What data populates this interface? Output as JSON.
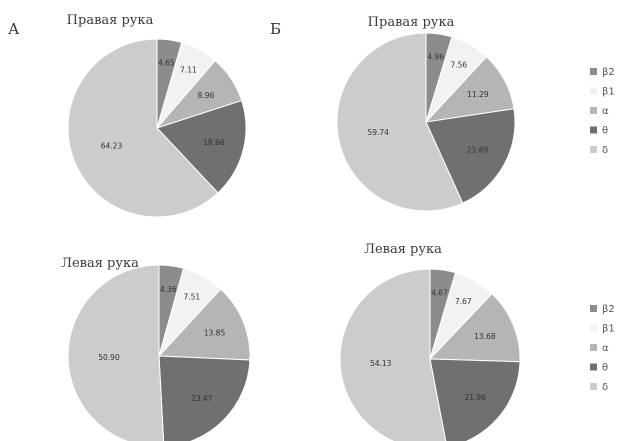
{
  "panels": [
    {
      "letter": "А"
    },
    {
      "letter": "Б"
    }
  ],
  "legend_swatch_colors": [
    "#8c8c8c",
    "#f2f2f2",
    "#b5b5b5",
    "#707070",
    "#cccccc"
  ],
  "legends": [
    {
      "entries": [
        "β2",
        "β1",
        "α",
        "θ",
        "δ"
      ]
    },
    {
      "entries": [
        "β2",
        "β1",
        "α",
        "θ",
        "δ"
      ]
    }
  ],
  "chart_data": [
    {
      "type": "pie",
      "panel": "А",
      "title": "Правая рука",
      "categories": [
        "β2",
        "β1",
        "α",
        "θ",
        "δ"
      ],
      "values": [
        4.65,
        7.11,
        8.96,
        18.66,
        64.23
      ],
      "labels": [
        "4.65",
        "7.11",
        "8.96",
        "18.66",
        "64.23"
      ],
      "colors": [
        "#8c8c8c",
        "#f2f2f2",
        "#b5b5b5",
        "#707070",
        "#cccccc"
      ]
    },
    {
      "type": "pie",
      "panel": "А",
      "title": "Левая рука",
      "categories": [
        "β2",
        "β1",
        "α",
        "θ",
        "δ"
      ],
      "values": [
        4.36,
        7.51,
        13.85,
        23.47,
        50.9
      ],
      "labels": [
        "4.36",
        "7.51",
        "13.85",
        "23.47",
        "50.90"
      ],
      "colors": [
        "#8c8c8c",
        "#f2f2f2",
        "#b5b5b5",
        "#707070",
        "#cccccc"
      ]
    },
    {
      "type": "pie",
      "panel": "Б",
      "title": "Правая рука",
      "categories": [
        "β2",
        "β1",
        "α",
        "θ",
        "δ"
      ],
      "values": [
        4.96,
        7.56,
        11.29,
        21.69,
        59.74
      ],
      "labels": [
        "4.96",
        "7.56",
        "11.29",
        "21.69",
        "59.74"
      ],
      "colors": [
        "#8c8c8c",
        "#f2f2f2",
        "#b5b5b5",
        "#707070",
        "#cccccc"
      ]
    },
    {
      "type": "pie",
      "panel": "Б",
      "title": "Левая рука",
      "categories": [
        "β2",
        "β1",
        "α",
        "θ",
        "δ"
      ],
      "values": [
        4.67,
        7.67,
        13.68,
        21.96,
        54.13
      ],
      "labels": [
        "4.67",
        "7.67",
        "13.68",
        "21.96",
        "54.13"
      ],
      "colors": [
        "#8c8c8c",
        "#f2f2f2",
        "#b5b5b5",
        "#707070",
        "#cccccc"
      ]
    }
  ]
}
